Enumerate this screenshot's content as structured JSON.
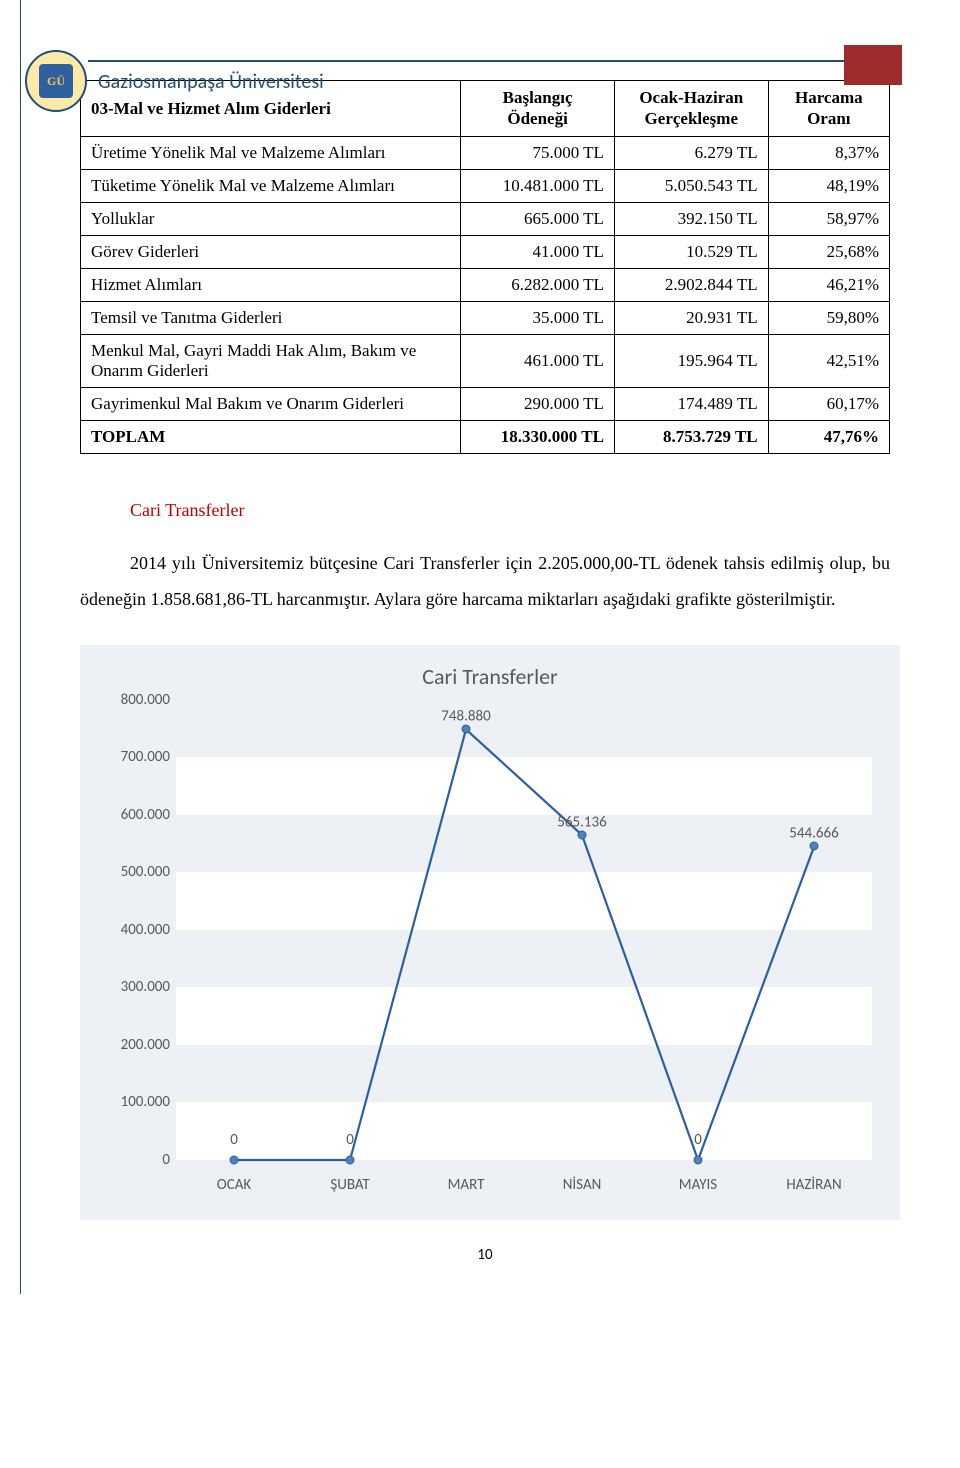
{
  "header": {
    "title": "Gaziosmanpaşa Üniversitesi"
  },
  "table": {
    "columns": [
      "03-Mal ve Hizmet Alım Giderleri",
      "Başlangıç Ödeneği",
      "Ocak-Haziran Gerçekleşme",
      "Harcama Oranı"
    ],
    "rows": [
      {
        "label": "Üretime Yönelik Mal ve Malzeme Alımları",
        "c1": "75.000 TL",
        "c2": "6.279 TL",
        "c3": "8,37%"
      },
      {
        "label": "Tüketime Yönelik Mal ve Malzeme Alımları",
        "c1": "10.481.000 TL",
        "c2": "5.050.543 TL",
        "c3": "48,19%"
      },
      {
        "label": "Yolluklar",
        "c1": "665.000 TL",
        "c2": "392.150 TL",
        "c3": "58,97%"
      },
      {
        "label": "Görev Giderleri",
        "c1": "41.000 TL",
        "c2": "10.529 TL",
        "c3": "25,68%"
      },
      {
        "label": "Hizmet Alımları",
        "c1": "6.282.000 TL",
        "c2": "2.902.844 TL",
        "c3": "46,21%"
      },
      {
        "label": "Temsil ve Tanıtma Giderleri",
        "c1": "35.000 TL",
        "c2": "20.931 TL",
        "c3": "59,80%"
      },
      {
        "label": "Menkul Mal, Gayri Maddi Hak Alım, Bakım ve Onarım Giderleri",
        "c1": "461.000 TL",
        "c2": "195.964 TL",
        "c3": "42,51%"
      },
      {
        "label": "Gayrimenkul Mal Bakım ve Onarım Giderleri",
        "c1": "290.000 TL",
        "c2": "174.489 TL",
        "c3": "60,17%"
      }
    ],
    "total": {
      "label": "TOPLAM",
      "c1": "18.330.000 TL",
      "c2": "8.753.729 TL",
      "c3": "47,76%"
    }
  },
  "section": {
    "title": "Cari Transferler",
    "paragraph": "2014 yılı Üniversitemiz bütçesine Cari Transferler için 2.205.000,00-TL ödenek tahsis edilmiş olup, bu ödeneğin 1.858.681,86-TL harcanmıştır. Aylara göre harcama miktarları aşağıdaki grafikte gösterilmiştir."
  },
  "chart": {
    "type": "line",
    "title": "Cari Transferler",
    "categories": [
      "OCAK",
      "ŞUBAT",
      "MART",
      "NİSAN",
      "MAYIS",
      "HAZİRAN"
    ],
    "values": [
      0,
      0,
      748880,
      565136,
      0,
      544666
    ],
    "data_labels": [
      "0",
      "0",
      "748.880",
      "565.136",
      "0",
      "544.666"
    ],
    "ylim": [
      0,
      800000
    ],
    "ytick_step": 100000,
    "ytick_labels": [
      "0",
      "100.000",
      "200.000",
      "300.000",
      "400.000",
      "500.000",
      "600.000",
      "700.000",
      "800.000"
    ],
    "line_color": "#2e5f9e",
    "marker_fill": "#4f81bd",
    "marker_border": "#2e5f9e",
    "grid_band_color": "#edf0f4",
    "plot_bg": "#ffffff",
    "axis_label_fontsize": 15,
    "title_fontsize": 22,
    "line_width": 2.2
  },
  "page_number": "10"
}
